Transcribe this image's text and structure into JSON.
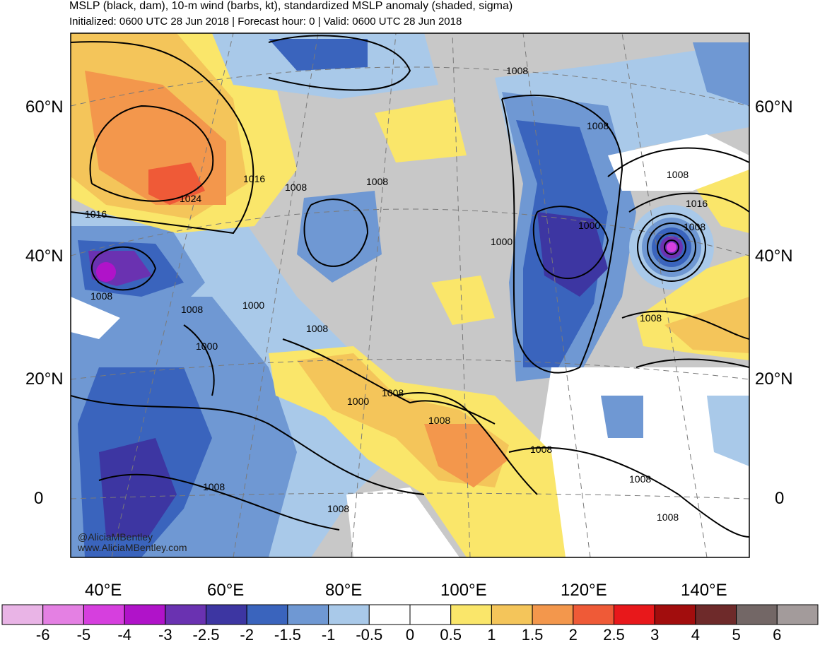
{
  "title": "MSLP (black, dam), 10-m wind (barbs, kt), standardized MSLP anomaly (shaded, sigma)",
  "subtitle": "Initialized: 0600 UTC 28 Jun 2018 | Forecast hour: 0 | Valid: 0600 UTC 28 Jun 2018",
  "latitude_labels": [
    "60°N",
    "40°N",
    "20°N",
    "0"
  ],
  "longitude_labels": [
    "40°E",
    "60°E",
    "80°E",
    "100°E",
    "120°E",
    "140°E"
  ],
  "contour_labels": [
    "1008",
    "1008",
    "1008",
    "1016",
    "1024",
    "1016",
    "1008",
    "1008",
    "1000",
    "1008",
    "1000",
    "1000",
    "1008",
    "1008",
    "1016",
    "1008",
    "1000",
    "1008",
    "1008",
    "1008",
    "1000",
    "1008",
    "1008",
    "1008",
    "1008",
    "1008"
  ],
  "colorbar": {
    "labels": [
      "-6",
      "-5",
      "-4",
      "-3",
      "-2.5",
      "-2",
      "-1.5",
      "-1",
      "-0.5",
      "0",
      "0.5",
      "1",
      "1.5",
      "2",
      "2.5",
      "3",
      "4",
      "5",
      "6"
    ],
    "colors": [
      "#e9b4e6",
      "#e480e3",
      "#d63fde",
      "#b013c9",
      "#6a32b1",
      "#3d36a2",
      "#3a64bd",
      "#6f98d3",
      "#a9c9e9",
      "#ffffff",
      "#ffffff",
      "#fae66a",
      "#f4c55a",
      "#f3974c",
      "#ef5a37",
      "#e8181b",
      "#a20d0d",
      "#6e2a2a",
      "#736766",
      "#a39b9b"
    ]
  },
  "credits": [
    "@AliciaMBentley",
    "www.AliciaMBentley.com"
  ]
}
